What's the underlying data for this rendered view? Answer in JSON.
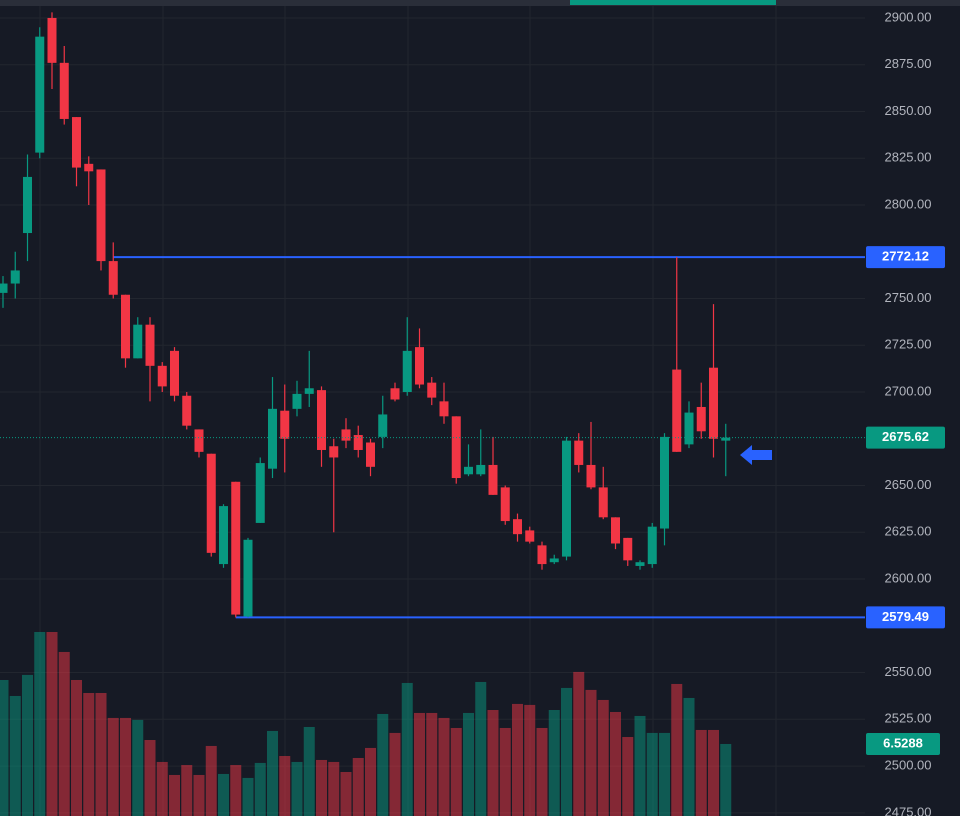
{
  "chart_data": {
    "type": "candlestick",
    "open": [
      2753,
      2758,
      2785,
      2828,
      2900,
      2876,
      2847,
      2822,
      2819,
      2770,
      2752,
      2718,
      2736,
      2714,
      2722,
      2698,
      2680,
      2667,
      2608,
      2652,
      2580,
      2630,
      2659,
      2690,
      2691,
      2699,
      2701,
      2671,
      2680,
      2677,
      2673,
      2676,
      2702,
      2700,
      2724,
      2705,
      2695,
      2687,
      2656,
      2656,
      2661,
      2649,
      2632,
      2626,
      2618,
      2609,
      2612,
      2674,
      2661,
      2649,
      2633,
      2622,
      2607,
      2608,
      2627,
      2712,
      2672,
      2692,
      2713,
      2674
    ],
    "high": [
      2762,
      2775,
      2827,
      2895,
      2903,
      2885,
      2847,
      2826,
      2819,
      2780,
      2752,
      2740,
      2740,
      2716,
      2724,
      2700,
      2680,
      2667,
      2640,
      2652,
      2622,
      2665,
      2708,
      2704,
      2706,
      2722,
      2703,
      2675,
      2686,
      2682,
      2675,
      2698,
      2705,
      2740,
      2734,
      2708,
      2705,
      2687,
      2672,
      2680,
      2676,
      2650,
      2635,
      2628,
      2620,
      2613,
      2676,
      2678,
      2684,
      2660,
      2633,
      2622,
      2610,
      2630,
      2678,
      2772.12,
      2695,
      2705,
      2747,
      2683
    ],
    "low": [
      2745,
      2750,
      2770,
      2825,
      2862,
      2843,
      2810,
      2800,
      2765,
      2750,
      2713,
      2718,
      2695,
      2700,
      2695,
      2680,
      2665,
      2612,
      2606,
      2579.49,
      2579.49,
      2630,
      2654,
      2657,
      2687,
      2692,
      2660,
      2625,
      2670,
      2665,
      2655,
      2670,
      2695,
      2698,
      2702,
      2693,
      2683,
      2651,
      2655,
      2655,
      2645,
      2629,
      2620,
      2619,
      2605,
      2608,
      2610,
      2657,
      2648,
      2632,
      2616,
      2607,
      2605,
      2606,
      2618,
      2668,
      2670,
      2675,
      2665,
      2655
    ],
    "close": [
      2758,
      2765,
      2815,
      2890,
      2876,
      2846,
      2820,
      2818,
      2770,
      2752,
      2718,
      2736,
      2714,
      2703,
      2698,
      2682,
      2668,
      2614,
      2639,
      2581,
      2621,
      2662,
      2691,
      2675,
      2699,
      2702,
      2669,
      2665,
      2674,
      2669,
      2660,
      2688,
      2696,
      2722,
      2704,
      2697,
      2687,
      2654,
      2660,
      2661,
      2645,
      2631,
      2624,
      2620,
      2608,
      2611,
      2674,
      2661,
      2649,
      2633,
      2619,
      2610,
      2609,
      2628,
      2676,
      2668,
      2689,
      2679,
      2675,
      2675.62
    ],
    "volume": [
      12.33,
      10.88,
      12.79,
      16.68,
      16.68,
      14.87,
      12.33,
      11.15,
      11.15,
      8.89,
      8.89,
      8.71,
      6.89,
      4.9,
      3.72,
      4.62,
      3.72,
      6.35,
      3.81,
      4.62,
      3.45,
      4.81,
      7.71,
      5.44,
      4.9,
      8.07,
      5.08,
      4.9,
      3.99,
      5.26,
      6.17,
      9.25,
      7.53,
      12.06,
      9.34,
      9.34,
      8.89,
      7.98,
      9.34,
      12.15,
      9.61,
      7.98,
      10.16,
      10.07,
      7.98,
      9.61,
      11.61,
      13.06,
      11.43,
      10.52,
      9.43,
      7.16,
      9.07,
      7.53,
      7.53,
      11.97,
      10.7,
      7.8,
      7.8,
      6.5288
    ],
    "ylim": [
      2473.3,
      2909.6
    ],
    "yticks": [
      {
        "value": 2900,
        "label": "2900.00"
      },
      {
        "value": 2875,
        "label": "2875.00"
      },
      {
        "value": 2850,
        "label": "2850.00"
      },
      {
        "value": 2825,
        "label": "2825.00"
      },
      {
        "value": 2800,
        "label": "2800.00"
      },
      {
        "value": 2750,
        "label": "2750.00"
      },
      {
        "value": 2725,
        "label": "2725.00"
      },
      {
        "value": 2700,
        "label": "2700.00"
      },
      {
        "value": 2650,
        "label": "2650.00"
      },
      {
        "value": 2625,
        "label": "2625.00"
      },
      {
        "value": 2600,
        "label": "2600.00"
      },
      {
        "value": 2550,
        "label": "2550.00"
      },
      {
        "value": 2525,
        "label": "2525.00"
      },
      {
        "value": 2500,
        "label": "2500.00"
      },
      {
        "value": 2475,
        "label": "2475.00"
      }
    ],
    "levels": [
      2772.12,
      2579.49
    ],
    "up_color": "#089981",
    "down_color": "#f23645",
    "level_color": "#2962ff",
    "grid": true
  }
}
